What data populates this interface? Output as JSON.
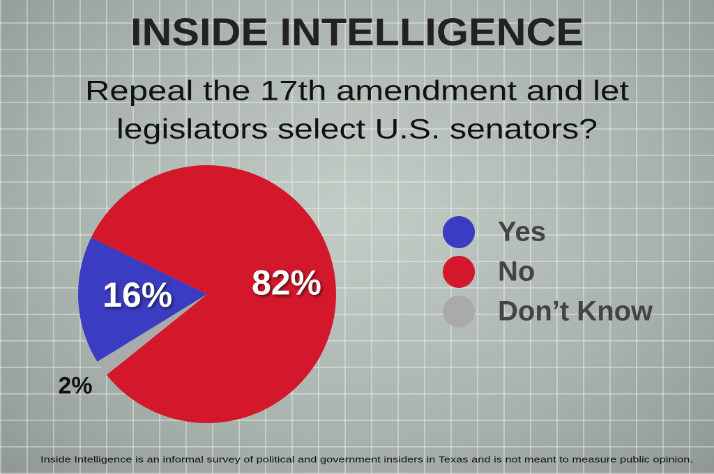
{
  "chart_data": {
    "type": "pie",
    "title": "INSIDE INTELLIGENCE",
    "subtitle": [
      "Repeal the 17th amendment and let",
      "legislators select U.S. senators?"
    ],
    "categories": [
      "Yes",
      "No",
      "Don’t Know"
    ],
    "values": [
      16,
      82,
      2
    ],
    "value_labels": [
      "16%",
      "82%",
      "2%"
    ],
    "colors": [
      "#3a3cc2",
      "#d3182c",
      "#a8aaac"
    ],
    "legend": "right",
    "footnote": "Inside Intelligence is an informal survey of political and government insiders in Texas and is not meant to measure public opinion."
  }
}
